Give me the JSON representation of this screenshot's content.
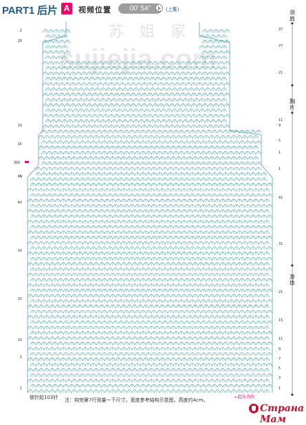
{
  "header": {
    "part_title": "PART1 后片",
    "part_badge": "A",
    "video_label": "视频位置",
    "video_time": "00' 54''",
    "video_part": "(上集)"
  },
  "watermark": {
    "chinese": "苏 姐 家",
    "english": "sujiejia.com"
  },
  "side_labels": {
    "collar": "领肩",
    "chest": "胸片",
    "body": "身体"
  },
  "left_row_numbers": [
    "2",
    "28",
    "19",
    "16",
    "1",
    "46",
    "40",
    "30",
    "20",
    "10",
    "5",
    "1"
  ],
  "right_row_numbers": [
    "37",
    "27",
    "21",
    "11",
    "9",
    "5",
    "1",
    "1",
    "41",
    "31",
    "21",
    "15",
    "11",
    "9",
    "7",
    "5",
    "3",
    "1"
  ],
  "marker_label": "加针",
  "start_label": "锁针起103针",
  "row_start_label": "←起头方向",
  "note": "注：钩完第7行测量一下尺寸，宽度参考结构示意图，高度约4cm。",
  "logo_text": "Страна Мам",
  "colors": {
    "stitch": "#3a9aa6",
    "accent": "#e60a6c",
    "brand": "#1f5a88"
  }
}
